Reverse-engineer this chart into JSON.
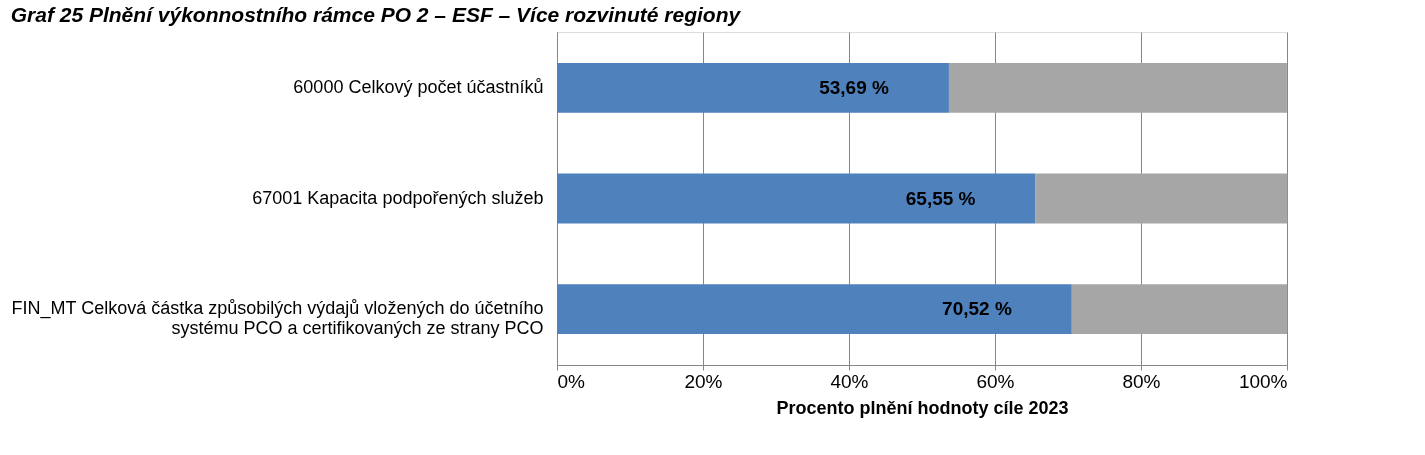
{
  "chart_data": {
    "type": "bar",
    "orientation": "horizontal",
    "stacked": true,
    "title": "Graf 25 Plnění výkonnostního rámce PO 2 – ESF – Více rozvinuté regiony",
    "categories": [
      "60000 Celkový počet účastníků",
      "67001 Kapacita podpořených služeb",
      "FIN_MT Celková částka způsobilých výdajů vložených do účetního systému PCO a certifikovaných ze strany PCO"
    ],
    "series": [
      {
        "color": "#4f81bd",
        "values": [
          53.69,
          65.55,
          70.52
        ],
        "value_labels": [
          "53,69 %",
          "65,55 %",
          "70,52 %"
        ]
      },
      {
        "color": "#a6a6a6",
        "values": [
          46.3,
          34.5,
          29.5
        ]
      }
    ],
    "xlabel": "Procento plnění hodnoty cíle 2023",
    "xlim": [
      0,
      100
    ],
    "xticks": [
      {
        "value": 0,
        "label": "0%"
      },
      {
        "value": 20,
        "label": "20%"
      },
      {
        "value": 40,
        "label": "40%"
      },
      {
        "value": 60,
        "label": "60%"
      },
      {
        "value": 80,
        "label": "80%"
      },
      {
        "value": 100,
        "label": "100%"
      }
    ],
    "grid": "x"
  }
}
